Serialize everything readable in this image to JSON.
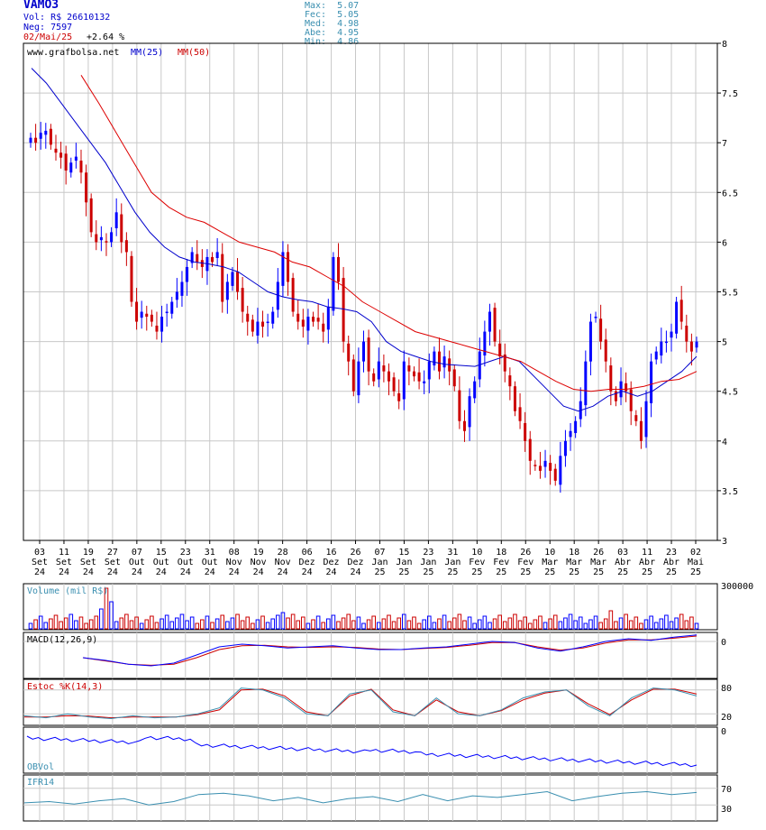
{
  "header": {
    "ticker": "VAMO3",
    "vol": "Vol: R$ 26610132",
    "neg": "Neg: 7597",
    "date": "02/Mai/25",
    "change": "+2.64 %",
    "max": "Max:  5.07",
    "fec": "Fec:  5.05",
    "med": "Med:  4.98",
    "abe": "Abe:  4.95",
    "min": "Min:  4.86"
  },
  "main_panel": {
    "site": "www.grafbolsa.net",
    "ma25_label": "MM(25)",
    "ma50_label": "MM(50)"
  },
  "volume_panel": {
    "label": "Volume (mil R$)",
    "tick": "300000"
  },
  "macd_panel": {
    "label": "MACD(12,26,9)",
    "tick": "0"
  },
  "stoch_panel": {
    "label": "Estoc %K(14,3)",
    "ticks": [
      "80",
      "20"
    ]
  },
  "obv_panel": {
    "label": "OBVol",
    "tick": "0"
  },
  "ifr_panel": {
    "label": "IFR14",
    "ticks": [
      "70",
      "30"
    ]
  },
  "colors": {
    "up": "#0000ff",
    "down": "#cc0000",
    "ma25": "#0000cc",
    "ma50": "#dd0000",
    "grid": "#c8c8c8",
    "stoch_d": "#cc0000",
    "stoch_k": "#3a8fb0",
    "ifr": "#3a8fb0"
  },
  "chart_data": [
    {
      "type": "candlestick",
      "title": "VAMO3",
      "ylim": [
        3,
        8
      ],
      "yticks": [
        "3",
        "3.5",
        "4",
        "4.5",
        "5",
        "5.5",
        "6",
        "6.5",
        "7",
        "7.5",
        "8"
      ],
      "xticks": [
        {
          "day": "03",
          "mon": "Set",
          "yr": "24"
        },
        {
          "day": "11",
          "mon": "Set",
          "yr": "24"
        },
        {
          "day": "19",
          "mon": "Set",
          "yr": "24"
        },
        {
          "day": "27",
          "mon": "Set",
          "yr": "24"
        },
        {
          "day": "07",
          "mon": "Out",
          "yr": "24"
        },
        {
          "day": "15",
          "mon": "Out",
          "yr": "24"
        },
        {
          "day": "23",
          "mon": "Out",
          "yr": "24"
        },
        {
          "day": "31",
          "mon": "Out",
          "yr": "24"
        },
        {
          "day": "08",
          "mon": "Nov",
          "yr": "24"
        },
        {
          "day": "19",
          "mon": "Nov",
          "yr": "24"
        },
        {
          "day": "28",
          "mon": "Nov",
          "yr": "24"
        },
        {
          "day": "06",
          "mon": "Dez",
          "yr": "24"
        },
        {
          "day": "16",
          "mon": "Dez",
          "yr": "24"
        },
        {
          "day": "26",
          "mon": "Dez",
          "yr": "24"
        },
        {
          "day": "07",
          "mon": "Jan",
          "yr": "25"
        },
        {
          "day": "15",
          "mon": "Jan",
          "yr": "25"
        },
        {
          "day": "23",
          "mon": "Jan",
          "yr": "25"
        },
        {
          "day": "31",
          "mon": "Jan",
          "yr": "25"
        },
        {
          "day": "10",
          "mon": "Fev",
          "yr": "25"
        },
        {
          "day": "18",
          "mon": "Fev",
          "yr": "25"
        },
        {
          "day": "26",
          "mon": "Fev",
          "yr": "25"
        },
        {
          "day": "10",
          "mon": "Mar",
          "yr": "25"
        },
        {
          "day": "18",
          "mon": "Mar",
          "yr": "25"
        },
        {
          "day": "26",
          "mon": "Mar",
          "yr": "25"
        },
        {
          "day": "03",
          "mon": "Abr",
          "yr": "25"
        },
        {
          "day": "11",
          "mon": "Abr",
          "yr": "25"
        },
        {
          "day": "23",
          "mon": "Abr",
          "yr": "25"
        },
        {
          "day": "02",
          "mon": "Mai",
          "yr": "25"
        }
      ],
      "close_series": [
        7.05,
        7.0,
        7.1,
        7.12,
        6.98,
        6.9,
        6.85,
        6.72,
        6.8,
        6.86,
        6.7,
        6.4,
        6.1,
        6.0,
        6.05,
        6.0,
        6.1,
        6.3,
        6.0,
        5.9,
        5.4,
        5.2,
        5.3,
        5.25,
        5.2,
        5.1,
        5.25,
        5.3,
        5.4,
        5.5,
        5.6,
        5.75,
        5.9,
        5.8,
        5.75,
        5.85,
        5.8,
        5.9,
        5.4,
        5.6,
        5.7,
        5.5,
        5.3,
        5.2,
        5.1,
        5.2,
        5.15,
        5.2,
        5.3,
        5.6,
        5.9,
        5.6,
        5.3,
        5.2,
        5.15,
        5.25,
        5.2,
        5.2,
        5.1,
        5.35,
        5.85,
        5.6,
        5.0,
        4.8,
        4.5,
        4.8,
        5.0,
        4.7,
        4.6,
        4.8,
        4.7,
        4.6,
        4.5,
        4.4,
        4.8,
        4.7,
        4.65,
        4.6,
        4.6,
        4.8,
        4.9,
        4.7,
        4.85,
        4.7,
        4.55,
        4.2,
        4.1,
        4.45,
        4.6,
        4.9,
        5.1,
        5.3,
        5.0,
        4.85,
        4.7,
        4.55,
        4.3,
        4.2,
        4.0,
        3.8,
        3.75,
        3.7,
        3.8,
        3.7,
        3.6,
        3.85,
        4.0,
        4.1,
        4.2,
        4.4,
        4.8,
        5.2,
        5.25,
        5.0,
        4.8,
        4.5,
        4.4,
        4.6,
        4.5,
        4.3,
        4.2,
        4.0,
        4.4,
        4.8,
        4.9,
        5.0,
        5.0,
        5.1,
        5.4,
        5.2,
        5.0,
        4.9,
        5.0
      ],
      "ma25": [
        7.75,
        7.6,
        7.4,
        7.2,
        7.0,
        6.8,
        6.55,
        6.3,
        6.1,
        5.95,
        5.85,
        5.8,
        5.78,
        5.75,
        5.7,
        5.6,
        5.5,
        5.45,
        5.42,
        5.4,
        5.35,
        5.33,
        5.3,
        5.2,
        5.0,
        4.9,
        4.85,
        4.8,
        4.77,
        4.76,
        4.75,
        4.8,
        4.85,
        4.8,
        4.65,
        4.5,
        4.35,
        4.3,
        4.35,
        4.45,
        4.5,
        4.45,
        4.5,
        4.6,
        4.7,
        4.85
      ],
      "ma50": [
        7.68,
        7.4,
        7.1,
        6.8,
        6.5,
        6.35,
        6.25,
        6.2,
        6.1,
        6.0,
        5.95,
        5.9,
        5.8,
        5.75,
        5.65,
        5.55,
        5.4,
        5.3,
        5.2,
        5.1,
        5.05,
        5.0,
        4.95,
        4.9,
        4.85,
        4.8,
        4.7,
        4.6,
        4.52,
        4.5,
        4.52,
        4.52,
        4.55,
        4.6,
        4.62,
        4.7
      ]
    },
    {
      "type": "bar",
      "title": "Volume (mil R$)",
      "ylim": [
        0,
        300000
      ],
      "note": "relative daily volumes"
    },
    {
      "type": "line",
      "title": "MACD(12,26,9)",
      "series": [
        {
          "values": [
            -0.3,
            -0.35,
            -0.42,
            -0.45,
            -0.4,
            -0.25,
            -0.1,
            -0.05,
            -0.08,
            -0.12,
            -0.1,
            -0.08,
            -0.12,
            -0.15,
            -0.15,
            -0.12,
            -0.1,
            -0.05,
            0.0,
            -0.02,
            -0.12,
            -0.18,
            -0.1,
            0.0,
            0.05,
            0.02,
            0.08,
            0.12
          ]
        },
        {
          "values": [
            -0.3,
            -0.36,
            -0.42,
            -0.44,
            -0.42,
            -0.3,
            -0.15,
            -0.08,
            -0.07,
            -0.1,
            -0.11,
            -0.1,
            -0.11,
            -0.14,
            -0.15,
            -0.13,
            -0.11,
            -0.07,
            -0.02,
            -0.02,
            -0.1,
            -0.16,
            -0.12,
            -0.03,
            0.03,
            0.03,
            0.06,
            0.1
          ]
        }
      ]
    },
    {
      "type": "line",
      "title": "Estoc %K(14,3)",
      "ylim": [
        0,
        100
      ],
      "yticks": [
        "80",
        "20"
      ],
      "series": [
        {
          "values": [
            15,
            10,
            20,
            12,
            8,
            15,
            10,
            12,
            20,
            35,
            85,
            80,
            60,
            20,
            15,
            70,
            80,
            25,
            15,
            60,
            20,
            15,
            30,
            60,
            75,
            80,
            40,
            15,
            60,
            85,
            80,
            65
          ]
        },
        {
          "values": [
            12,
            12,
            15,
            14,
            10,
            12,
            12,
            12,
            18,
            30,
            80,
            82,
            65,
            25,
            15,
            65,
            82,
            30,
            15,
            55,
            25,
            15,
            28,
            55,
            72,
            80,
            45,
            18,
            55,
            82,
            82,
            70
          ]
        }
      ]
    },
    {
      "type": "line",
      "title": "OBVol",
      "yticks": [
        "0"
      ]
    },
    {
      "type": "line",
      "title": "IFR14",
      "yticks": [
        "70",
        "30"
      ],
      "series": [
        {
          "values": [
            35,
            38,
            32,
            40,
            45,
            30,
            38,
            55,
            58,
            52,
            40,
            48,
            35,
            45,
            50,
            38,
            55,
            40,
            52,
            48,
            55,
            62,
            40,
            50,
            58,
            62,
            55,
            60
          ]
        }
      ]
    }
  ]
}
